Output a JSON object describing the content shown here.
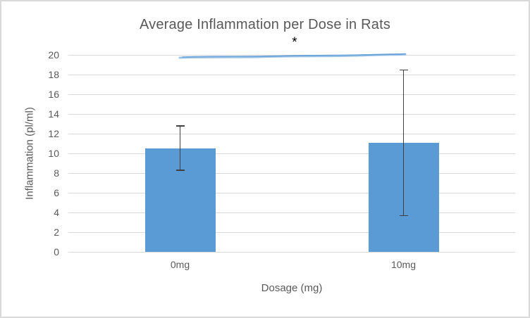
{
  "chart_data": {
    "type": "bar",
    "title": "Average Inflammation per Dose in Rats",
    "xlabel": "Dosage (mg)",
    "ylabel": "Inflammation (pl/ml)",
    "categories": [
      "0mg",
      "10mg"
    ],
    "values": [
      10.5,
      11.1
    ],
    "error_low": [
      8.3,
      3.7
    ],
    "error_high": [
      12.8,
      18.5
    ],
    "ylim": [
      0,
      20
    ],
    "yticks": [
      0,
      2,
      4,
      6,
      8,
      10,
      12,
      14,
      16,
      18,
      20
    ],
    "grid": "horizontal",
    "legend": "none",
    "significance_line": {
      "from_category": "0mg",
      "to_category": "10mg",
      "at_y": 20,
      "label": "*"
    }
  },
  "colors": {
    "bar": "#5B9BD5",
    "gridline": "#D9D9D9",
    "axis_text": "#595959",
    "title_text": "#595959",
    "error_bar": "#404040",
    "sig_line_light": "#9DC3E6",
    "sig_line_dark": "#5B9BD5",
    "asterisk": "#000000",
    "frame_border": "#D9D9D9",
    "background": "#FFFFFF"
  }
}
